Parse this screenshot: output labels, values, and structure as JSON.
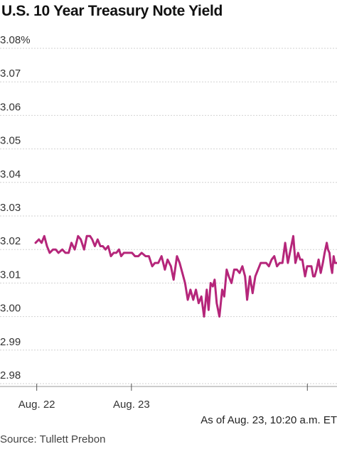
{
  "title": "U.S. 10 Year Treasury Note Yield",
  "as_of": "As of Aug. 23, 10:20 a.m. ET",
  "source": "Source: Tullett Prebon",
  "chart_data": {
    "type": "line",
    "title": "U.S. 10 Year Treasury Note Yield",
    "ylim": [
      2.98,
      3.08
    ],
    "yticks": [
      3.08,
      3.07,
      3.06,
      3.05,
      3.04,
      3.03,
      3.02,
      3.01,
      3.0,
      2.99,
      2.98
    ],
    "ytick_labels": [
      "3.08%",
      "3.07",
      "3.06",
      "3.05",
      "3.04",
      "3.03",
      "3.02",
      "3.01",
      "3.00",
      "2.99",
      "2.98"
    ],
    "xticks": [
      {
        "label": "Aug. 22",
        "pos": 0.109
      },
      {
        "label": "Aug. 23",
        "pos": 0.39
      },
      {
        "label": "",
        "pos": 0.912
      }
    ],
    "xlim": [
      0,
      1
    ],
    "grid": true,
    "line_color": "#b5267a",
    "series": [
      {
        "name": "",
        "x": [
          0.0,
          0.011,
          0.02,
          0.029,
          0.038,
          0.047,
          0.058,
          0.067,
          0.076,
          0.089,
          0.099,
          0.11,
          0.119,
          0.13,
          0.141,
          0.15,
          0.161,
          0.17,
          0.181,
          0.188,
          0.197,
          0.206,
          0.215,
          0.223,
          0.232,
          0.241,
          0.25,
          0.259,
          0.268,
          0.277,
          0.284,
          0.293,
          0.302,
          0.311,
          0.32,
          0.33,
          0.341,
          0.352,
          0.365,
          0.376,
          0.387,
          0.396,
          0.407,
          0.418,
          0.429,
          0.438,
          0.449,
          0.458,
          0.469,
          0.478,
          0.487,
          0.496,
          0.505,
          0.514,
          0.523,
          0.532,
          0.541,
          0.55,
          0.559,
          0.568,
          0.574,
          0.581,
          0.588,
          0.594,
          0.601,
          0.61,
          0.619,
          0.626,
          0.634,
          0.641,
          0.65,
          0.659,
          0.668,
          0.677,
          0.686,
          0.695,
          0.702,
          0.711,
          0.72,
          0.729,
          0.738,
          0.747,
          0.756,
          0.765,
          0.774,
          0.783,
          0.792,
          0.801,
          0.81,
          0.819,
          0.828,
          0.837,
          0.846,
          0.855,
          0.862,
          0.871,
          0.878,
          0.885,
          0.894,
          0.901,
          0.908,
          0.915,
          0.921,
          0.926,
          0.932,
          0.939,
          0.946,
          0.953,
          0.959,
          0.966,
          0.97,
          0.975,
          0.98,
          0.984,
          0.989,
          0.993,
          0.997,
          1.0
        ],
        "y": [
          3.022,
          3.023,
          3.022,
          3.024,
          3.021,
          3.019,
          3.02,
          3.02,
          3.019,
          3.02,
          3.019,
          3.019,
          3.022,
          3.02,
          3.024,
          3.023,
          3.02,
          3.024,
          3.024,
          3.023,
          3.021,
          3.023,
          3.021,
          3.021,
          3.02,
          3.021,
          3.018,
          3.019,
          3.019,
          3.02,
          3.018,
          3.019,
          3.019,
          3.019,
          3.019,
          3.018,
          3.018,
          3.019,
          3.018,
          3.018,
          3.015,
          3.016,
          3.016,
          3.018,
          3.014,
          3.017,
          3.015,
          3.011,
          3.018,
          3.016,
          3.013,
          3.01,
          3.005,
          3.008,
          3.005,
          3.008,
          3.004,
          3.006,
          3.0,
          3.008,
          3.002,
          3.01,
          3.009,
          3.011,
          3.004,
          3.0,
          3.008,
          3.006,
          3.014,
          3.012,
          3.01,
          3.014,
          3.014,
          3.013,
          3.015,
          3.012,
          3.005,
          3.012,
          3.007,
          3.012,
          3.014,
          3.016,
          3.016,
          3.016,
          3.015,
          3.017,
          3.018,
          3.015,
          3.016,
          3.016,
          3.022,
          3.016,
          3.02,
          3.024,
          3.016,
          3.019,
          3.017,
          3.017,
          3.012,
          3.015,
          3.015,
          3.015,
          3.012,
          3.012,
          3.014,
          3.017,
          3.013,
          3.016,
          3.019,
          3.022,
          3.02,
          3.019,
          3.015,
          3.013,
          3.018,
          3.016,
          3.016,
          3.016
        ]
      }
    ]
  }
}
